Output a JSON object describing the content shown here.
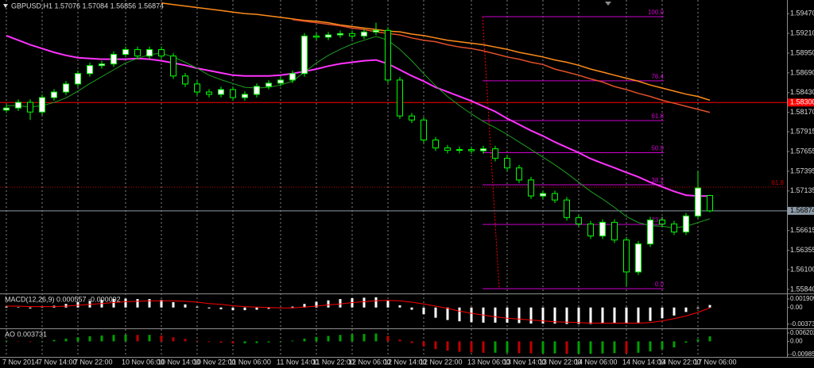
{
  "chart_data": {
    "type": "candlestick",
    "title": "GBPUSD,H1  1.57076 1.57084 1.56856 1.56874",
    "categories": [
      "7 Nov 2014",
      null,
      null,
      "7 Nov 14:00",
      null,
      null,
      "7 Nov 22:00",
      null,
      null,
      null,
      "10 Nov 06:00",
      null,
      null,
      "10 Nov 14:00",
      null,
      null,
      "10 Nov 22:00",
      null,
      null,
      "11 Nov 06:00",
      null,
      null,
      null,
      "11 Nov 14:00",
      null,
      null,
      "11 Nov 22:00",
      null,
      null,
      "12 Nov 06:00",
      null,
      null,
      "12 Nov 14:00",
      null,
      null,
      "12 Nov 22:00",
      null,
      null,
      null,
      "13 Nov 06:00",
      null,
      null,
      "13 Nov 14:00",
      null,
      null,
      "13 Nov 22:00",
      null,
      null,
      "14 Nov 06:00",
      null,
      null,
      null,
      "14 Nov 14:00",
      null,
      null,
      "14 Nov 22:00",
      null,
      null,
      "17 Nov 06:00",
      null
    ],
    "open": [
      1.582,
      1.58228,
      1.58302,
      1.58175,
      1.58365,
      1.58438,
      1.58544,
      1.58681,
      1.58786,
      1.58807,
      1.58933,
      1.58996,
      1.58912,
      1.58996,
      1.58912,
      1.58649,
      1.58544,
      1.58438,
      1.58407,
      1.5847,
      1.58365,
      1.58407,
      1.58512,
      1.58554,
      1.58596,
      1.58681,
      1.59175,
      1.5916,
      1.5919,
      1.59207,
      1.59175,
      1.59228,
      1.59249,
      1.58596,
      1.58123,
      1.5807,
      1.57807,
      1.57702,
      1.5767,
      1.57681,
      1.57665,
      1.57691,
      1.57565,
      1.57439,
      1.57281,
      1.5707,
      1.57102,
      1.57017,
      1.56786,
      1.56702,
      1.56544,
      1.56723,
      1.56491,
      1.5607,
      1.56439,
      1.56754,
      1.56702,
      1.56596,
      1.56807,
      1.57076
    ],
    "high": [
      1.58268,
      1.58342,
      1.58342,
      1.58405,
      1.58478,
      1.58584,
      1.58721,
      1.58826,
      1.58847,
      1.58973,
      1.59036,
      1.59036,
      1.59036,
      1.59036,
      1.58952,
      1.58689,
      1.58584,
      1.58478,
      1.5851,
      1.5851,
      1.58447,
      1.58552,
      1.58594,
      1.58636,
      1.58721,
      1.59215,
      1.59215,
      1.5923,
      1.59247,
      1.59247,
      1.59268,
      1.5935,
      1.59289,
      1.58636,
      1.58163,
      1.5811,
      1.57847,
      1.57742,
      1.57721,
      1.57721,
      1.57731,
      1.57731,
      1.57605,
      1.57479,
      1.57321,
      1.57142,
      1.57142,
      1.57057,
      1.56826,
      1.56742,
      1.56763,
      1.56763,
      1.56531,
      1.56479,
      1.56794,
      1.56794,
      1.56742,
      1.56847,
      1.574,
      1.57084
    ],
    "low": [
      1.5816,
      1.58188,
      1.5807,
      1.58135,
      1.58325,
      1.58398,
      1.58504,
      1.58641,
      1.58746,
      1.58767,
      1.58893,
      1.58872,
      1.58872,
      1.58872,
      1.58609,
      1.58504,
      1.58398,
      1.58367,
      1.58367,
      1.58325,
      1.58325,
      1.58367,
      1.58472,
      1.58514,
      1.58556,
      1.58641,
      1.5912,
      1.5912,
      1.5915,
      1.59135,
      1.59135,
      1.59188,
      1.58556,
      1.58083,
      1.5803,
      1.57767,
      1.57662,
      1.5763,
      1.5763,
      1.57625,
      1.57625,
      1.57525,
      1.57399,
      1.57241,
      1.5703,
      1.5703,
      1.56977,
      1.56746,
      1.56662,
      1.56504,
      1.56504,
      1.56451,
      1.5589,
      1.5603,
      1.56399,
      1.56662,
      1.56556,
      1.56556,
      1.56767,
      1.56856
    ],
    "close": [
      1.58228,
      1.58302,
      1.58175,
      1.58365,
      1.58438,
      1.58544,
      1.58681,
      1.58786,
      1.58807,
      1.58933,
      1.58996,
      1.58912,
      1.58996,
      1.58912,
      1.58649,
      1.58544,
      1.58438,
      1.58407,
      1.5847,
      1.58365,
      1.58407,
      1.58512,
      1.58554,
      1.58596,
      1.58681,
      1.59175,
      1.5916,
      1.5919,
      1.59207,
      1.59175,
      1.59228,
      1.59249,
      1.58596,
      1.58123,
      1.5807,
      1.57807,
      1.57702,
      1.5767,
      1.57681,
      1.57665,
      1.57691,
      1.57565,
      1.57439,
      1.57281,
      1.5707,
      1.57102,
      1.57017,
      1.56786,
      1.56702,
      1.56544,
      1.56723,
      1.56491,
      1.5607,
      1.56439,
      1.56754,
      1.56702,
      1.56596,
      1.56807,
      1.57175,
      1.56874
    ],
    "up_color": "#ffffff",
    "down_color": "#000000",
    "wick_color": "#00ff00",
    "ylim": [
      1.55808,
      1.59649
    ],
    "yticks": [
      {
        "value": 1.5947,
        "label": "1.59470"
      },
      {
        "value": 1.5921,
        "label": "1.59210"
      },
      {
        "value": 1.5895,
        "label": "1.58950"
      },
      {
        "value": 1.5869,
        "label": "1.58690"
      },
      {
        "value": 1.5843,
        "label": "1.58430"
      },
      {
        "value": 1.5817,
        "label": "1.58170"
      },
      1.57915,
      1.57655,
      1.57395,
      1.57135,
      1.56615,
      1.56355,
      {
        "value": 1.561,
        "label": "1.56100"
      },
      {
        "value": 1.5584,
        "label": "1.55840"
      }
    ],
    "series": [
      {
        "color": "#ff33ff",
        "values": [
          1.5918,
          1.5912,
          1.5906,
          1.5901,
          1.5896,
          1.5892,
          1.5889,
          1.5888,
          1.5887,
          1.5887,
          1.5887,
          1.5888,
          1.5887,
          1.5885,
          1.5882,
          1.5879,
          1.5875,
          1.5872,
          1.5869,
          1.5866,
          1.5865,
          1.5865,
          1.5865,
          1.5866,
          1.5868,
          1.5871,
          1.5874,
          1.5878,
          1.5881,
          1.5883,
          1.5885,
          1.5886,
          1.5881,
          1.5873,
          1.5865,
          1.5858,
          1.585,
          1.5844,
          1.5838,
          1.5832,
          1.5825,
          1.5818,
          1.5809,
          1.5801,
          1.5793,
          1.5786,
          1.5778,
          1.5771,
          1.5764,
          1.5756,
          1.575,
          1.5744,
          1.5738,
          1.5732,
          1.5725,
          1.5719,
          1.5713,
          1.5708,
          1.5707,
          1.5707
        ]
      },
      {
        "color": "#ff8c1a",
        "values": [
          null,
          null,
          null,
          null,
          null,
          null,
          null,
          null,
          null,
          null,
          null,
          null,
          null,
          1.5961,
          1.5959,
          1.5957,
          1.5955,
          1.5953,
          1.5951,
          1.5949,
          1.5947,
          1.5946,
          1.5944,
          1.5942,
          1.594,
          1.5938,
          1.5937,
          1.5935,
          1.5932,
          1.593,
          1.5928,
          1.5926,
          1.5924,
          1.5923,
          1.592,
          1.5918,
          1.5915,
          1.5912,
          1.591,
          1.5908,
          1.5906,
          1.5903,
          1.59,
          1.5896,
          1.5893,
          1.589,
          1.5886,
          1.5883,
          1.5879,
          1.5874,
          1.587,
          1.5866,
          1.5862,
          1.5858,
          1.5853,
          1.5849,
          1.5845,
          1.5841,
          1.5838,
          1.5833
        ]
      },
      {
        "color": "#e0502a",
        "values": [
          null,
          null,
          null,
          null,
          null,
          null,
          null,
          null,
          null,
          null,
          null,
          null,
          null,
          null,
          null,
          null,
          null,
          null,
          null,
          null,
          null,
          null,
          null,
          null,
          1.5939,
          1.5937,
          1.5935,
          1.5933,
          1.5931,
          1.5928,
          1.5926,
          1.5923,
          1.5921,
          1.5919,
          1.5915,
          1.5912,
          1.591,
          1.5906,
          1.5903,
          1.5901,
          1.5898,
          1.5894,
          1.589,
          1.5887,
          1.5883,
          1.588,
          1.5874,
          1.587,
          1.5866,
          1.5861,
          1.5857,
          1.5851,
          1.5847,
          1.5842,
          1.5838,
          1.5833,
          1.5829,
          1.5825,
          1.5821,
          1.5817
        ]
      },
      {
        "color": "#1f9e1f",
        "values": [
          1.5826,
          1.5826,
          1.5824,
          1.5826,
          1.583,
          1.5836,
          1.5845,
          1.5855,
          1.5864,
          1.5873,
          1.5882,
          1.5888,
          1.5893,
          1.5895,
          1.589,
          1.5883,
          1.5875,
          1.5866,
          1.586,
          1.5855,
          1.585,
          1.5849,
          1.585,
          1.5853,
          1.5858,
          1.587,
          1.5882,
          1.5892,
          1.59,
          1.5907,
          1.5912,
          1.5917,
          1.5912,
          1.59,
          1.5885,
          1.5868,
          1.5852,
          1.5838,
          1.5826,
          1.5815,
          1.5805,
          1.5797,
          1.5788,
          1.5778,
          1.5768,
          1.5758,
          1.5748,
          1.5737,
          1.5725,
          1.5713,
          1.5703,
          1.5692,
          1.568,
          1.5672,
          1.5668,
          1.5667,
          1.5665,
          1.5667,
          1.5672,
          1.5677
        ]
      }
    ],
    "hlines": [
      {
        "value": 1.583,
        "label": "1.58300",
        "color": "#ff0000",
        "style": "solid",
        "label_at": "axis"
      },
      {
        "value": 1.56874,
        "label": "1.56874",
        "color": "#8c9aa6",
        "style": "solid",
        "label_at": "axis"
      },
      {
        "value": 1.57186,
        "label": "61.8",
        "color": "#c00000",
        "style": "dotted",
        "label_at": "chart"
      }
    ],
    "fibonacci": {
      "high": 1.5943,
      "low": 1.5585,
      "color": "#cc00cc",
      "trend_color": "#ff0000",
      "levels": [
        {
          "value": 0,
          "label": "0.0"
        },
        {
          "value": 23.6,
          "label": "23.6"
        },
        {
          "value": 38.2,
          "label": "38.2"
        },
        {
          "value": 50,
          "label": "50.0"
        },
        {
          "value": 61.8,
          "label": "61.8"
        },
        {
          "value": 76.4,
          "label": "76.4"
        },
        {
          "value": 100,
          "label": "100.0"
        }
      ]
    },
    "indicators": [
      {
        "type": "macd",
        "title": "MACD(12,26,9) 0.000557 -0.000092",
        "color": "#ffffff",
        "signal_color": "#ff0000",
        "ylim": [
          -0.0045,
          0.0028
        ],
        "yticks": [
          0.001909,
          {
            "value": 0,
            "label": "0.00"
          },
          -0.003731
        ],
        "values": [
          0.0002,
          0.0001,
          -0.0002,
          0.0001,
          0.0004,
          0.0008,
          0.0012,
          0.0015,
          0.0017,
          0.0019,
          0.002,
          0.0019,
          0.0019,
          0.0017,
          0.0012,
          0.0007,
          0.0002,
          -0.0002,
          -0.0004,
          -0.0006,
          -0.0006,
          -0.0005,
          -0.0003,
          -0.0001,
          0.0002,
          0.0008,
          0.0013,
          0.0016,
          0.0019,
          0.0021,
          0.0022,
          0.0023,
          0.0016,
          0.0005,
          -0.0005,
          -0.0015,
          -0.0023,
          -0.0028,
          -0.0031,
          -0.0033,
          -0.0034,
          -0.0034,
          -0.0034,
          -0.0035,
          -0.0036,
          -0.0036,
          -0.0036,
          -0.0037,
          -0.0037,
          -0.0037,
          -0.0036,
          -0.0035,
          -0.0036,
          -0.0034,
          -0.003,
          -0.0024,
          -0.0018,
          -0.001,
          -0.0002,
          0.000557
        ],
        "signal": [
          0.0003,
          0.0003,
          0.0002,
          0.0002,
          0.0002,
          0.0003,
          0.0005,
          0.0007,
          0.0009,
          0.0011,
          0.0013,
          0.0014,
          0.0015,
          0.0015,
          0.0015,
          0.0014,
          0.0012,
          0.0009,
          0.0007,
          0.0004,
          0.0002,
          0.0001,
          0,
          -0.0001,
          -0.0001,
          0.0001,
          0.0003,
          0.0006,
          0.0008,
          0.0011,
          0.0013,
          0.0015,
          0.0016,
          0.0015,
          0.0012,
          0.0008,
          0.0003,
          -0.0002,
          -0.0008,
          -0.0013,
          -0.0017,
          -0.0021,
          -0.0024,
          -0.0026,
          -0.0028,
          -0.003,
          -0.0032,
          -0.0033,
          -0.0034,
          -0.0035,
          -0.0035,
          -0.0035,
          -0.0035,
          -0.0035,
          -0.0034,
          -0.003,
          -0.0025,
          -0.0019,
          -0.0011,
          -9.2e-05
        ]
      },
      {
        "type": "ao",
        "title": "AO 0.003731",
        "up_color": "#00a000",
        "down_color": "#c00000",
        "ylim": [
          -0.011,
          0.0085
        ],
        "yticks": [
          0.006202,
          {
            "value": 0,
            "label": "0.00"
          },
          -0.009855
        ],
        "values": [
          0.0005,
          0.0003,
          -0.0005,
          0.0003,
          0.001,
          0.002,
          0.003,
          0.0038,
          0.0043,
          0.0048,
          0.005,
          0.0048,
          0.0048,
          0.0043,
          0.003,
          0.0018,
          0.0005,
          -0.0005,
          -0.001,
          -0.0015,
          -0.0015,
          -0.0013,
          -0.0008,
          -0.0003,
          0.0005,
          0.002,
          0.0033,
          0.004,
          0.0048,
          0.0053,
          0.0055,
          0.0058,
          0.004,
          0.0013,
          -0.0013,
          -0.0038,
          -0.0058,
          -0.007,
          -0.0078,
          -0.0083,
          -0.0085,
          -0.0085,
          -0.0085,
          -0.0088,
          -0.009,
          -0.009,
          -0.009,
          -0.0093,
          -0.0093,
          -0.0093,
          -0.009,
          -0.0088,
          -0.009,
          -0.0085,
          -0.0075,
          -0.006,
          -0.0045,
          -0.001,
          0.0015,
          0.003731
        ]
      }
    ]
  }
}
